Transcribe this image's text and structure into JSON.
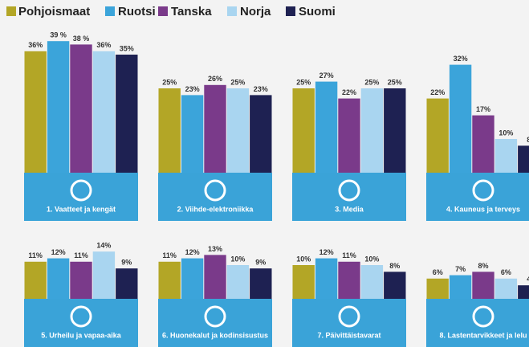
{
  "legend": [
    {
      "name": "Pohjoismaat",
      "color": "#b3a626"
    },
    {
      "name": "Ruotsi",
      "color": "#3ba4da"
    },
    {
      "name": "Tanska",
      "color": "#7a3a8a"
    },
    {
      "name": "Norja",
      "color": "#a9d5f0"
    },
    {
      "name": "Suomi",
      "color": "#1e2152"
    }
  ],
  "chart_data": [
    {
      "type": "bar",
      "title": "1. Vaatteet ja kengät",
      "values": [
        36,
        39,
        38,
        36,
        35
      ],
      "value_labels": [
        "36%",
        "39 %",
        "38 %",
        "36%",
        "35%"
      ]
    },
    {
      "type": "bar",
      "title": "2. Viihde-elektroniikka",
      "values": [
        25,
        23,
        26,
        25,
        23
      ],
      "value_labels": [
        "25%",
        "23%",
        "26%",
        "25%",
        "23%"
      ]
    },
    {
      "type": "bar",
      "title": "3. Media",
      "values": [
        25,
        27,
        22,
        25,
        25
      ],
      "value_labels": [
        "25%",
        "27%",
        "22%",
        "25%",
        "25%"
      ]
    },
    {
      "type": "bar",
      "title": "4. Kauneus ja terveys",
      "values": [
        22,
        32,
        17,
        10,
        8
      ],
      "value_labels": [
        "22%",
        "32%",
        "17%",
        "10%",
        "8"
      ]
    },
    {
      "type": "bar",
      "title": "5. Urheilu ja vapaa-aika",
      "values": [
        11,
        12,
        11,
        14,
        9
      ],
      "value_labels": [
        "11%",
        "12%",
        "11%",
        "14%",
        "9%"
      ]
    },
    {
      "type": "bar",
      "title": "6. Huonekalut ja kodinsisustus",
      "values": [
        11,
        12,
        13,
        10,
        9
      ],
      "value_labels": [
        "11%",
        "12%",
        "13%",
        "10%",
        "9%"
      ]
    },
    {
      "type": "bar",
      "title": "7. Päivittäistavarat",
      "values": [
        10,
        12,
        11,
        10,
        8
      ],
      "value_labels": [
        "10%",
        "12%",
        "11%",
        "10%",
        "8%"
      ]
    },
    {
      "type": "bar",
      "title": "8. Lastentarvikkeet ja lelu",
      "values": [
        6,
        7,
        8,
        6,
        4
      ],
      "value_labels": [
        "6%",
        "7%",
        "8%",
        "6%",
        "4"
      ]
    }
  ]
}
